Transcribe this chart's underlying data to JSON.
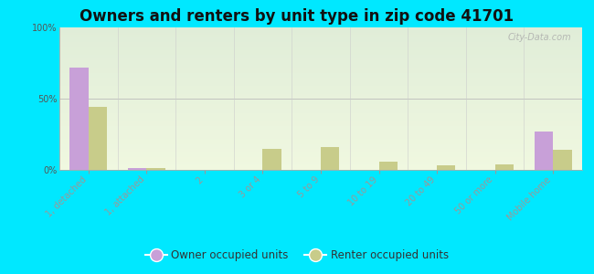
{
  "title": "Owners and renters by unit type in zip code 41701",
  "categories": [
    "1, detached",
    "1, attached",
    "2",
    "3 or 4",
    "5 to 9",
    "10 to 19",
    "20 to 49",
    "50 or more",
    "Mobile home"
  ],
  "owner_values": [
    72,
    1,
    0,
    0,
    0,
    0,
    0,
    0,
    27
  ],
  "renter_values": [
    44,
    1,
    0,
    15,
    16,
    6,
    3,
    4,
    14
  ],
  "owner_color": "#c8a0d8",
  "renter_color": "#c8cc8a",
  "background_color": "#00e8ff",
  "grad_top": "#e0edd8",
  "grad_bottom": "#f0f8e0",
  "ylim_max": 100,
  "bar_width": 0.32,
  "legend_owner_label": "Owner occupied units",
  "legend_renter_label": "Renter occupied units",
  "title_fontsize": 12,
  "tick_fontsize": 7,
  "legend_fontsize": 8.5
}
